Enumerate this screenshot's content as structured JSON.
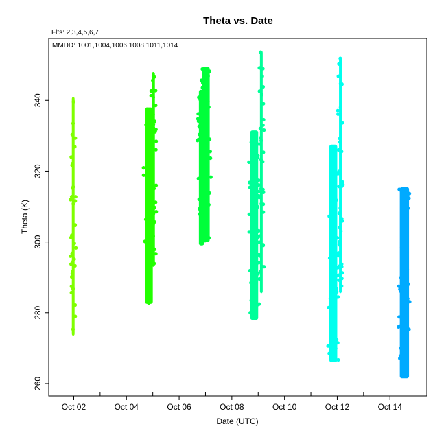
{
  "chart_data": {
    "type": "scatter",
    "title": "Theta  vs. Date",
    "subtitle_flights": "Flts: 2,3,4,5,6,7",
    "subtitle_mmdd": "MMDD: 1001,1004,1006,1008,1011,1014",
    "xlabel": "Date (UTC)",
    "ylabel": "Theta (K)",
    "x_tick_labels": [
      "Oct 02",
      "Oct 04",
      "Oct 06",
      "Oct 08",
      "Oct 10",
      "Oct 12",
      "Oct 14"
    ],
    "x_tick_days": [
      2,
      4,
      6,
      8,
      10,
      12,
      14
    ],
    "x_minor_tick_days": [
      3,
      5,
      7,
      9,
      11,
      13
    ],
    "xlim_days": [
      1.05,
      15.4
    ],
    "y_ticks": [
      260,
      280,
      300,
      320,
      340
    ],
    "ylim": [
      256.5,
      357.5
    ],
    "grid": false,
    "series": [
      {
        "color": "#7fff00",
        "segments": [
          {
            "day": 1.98,
            "width": 0.1,
            "ymin": 273.5,
            "ymax": 341.0
          }
        ]
      },
      {
        "color": "#22ff00",
        "segments": [
          {
            "day": 4.85,
            "width": 0.3,
            "ymin": 282.5,
            "ymax": 338.0
          },
          {
            "day": 5.02,
            "width": 0.12,
            "ymin": 293.0,
            "ymax": 348.0
          }
        ]
      },
      {
        "color": "#00ff3a",
        "segments": [
          {
            "day": 6.85,
            "width": 0.2,
            "ymin": 299.0,
            "ymax": 343.0
          },
          {
            "day": 7.02,
            "width": 0.28,
            "ymin": 300.0,
            "ymax": 349.5
          }
        ]
      },
      {
        "color": "#00ff99",
        "segments": [
          {
            "day": 8.85,
            "width": 0.3,
            "ymin": 278.0,
            "ymax": 331.5
          },
          {
            "day": 9.12,
            "width": 0.1,
            "ymin": 285.5,
            "ymax": 354.0
          }
        ]
      },
      {
        "color": "#00ffee",
        "segments": [
          {
            "day": 11.85,
            "width": 0.3,
            "ymin": 266.0,
            "ymax": 327.5
          },
          {
            "day": 12.12,
            "width": 0.1,
            "ymin": 285.5,
            "ymax": 352.0
          }
        ]
      },
      {
        "color": "#00aaff",
        "segments": [
          {
            "day": 14.55,
            "width": 0.35,
            "ymin": 261.5,
            "ymax": 315.5
          }
        ]
      }
    ]
  }
}
